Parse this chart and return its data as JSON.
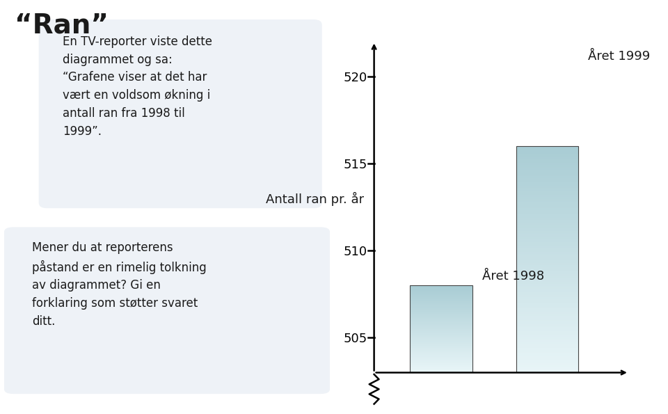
{
  "title": "“Ran”",
  "text_box1": "En TV-reporter viste dette\ndiagrammet og sa:\n“Grafene viser at det har\nvært en voldsom økning i\nantall ran fra 1998 til\n1999”.",
  "text_box2": "Mener du at reporterens\npåstand er en rimelig tolkning\nav diagrammet? Gi en\nforklaring som støtter svaret\nditt.",
  "ylabel": "Antall ran pr. år",
  "bar_label_1998": "Året 1998",
  "bar_label_1999": "Året 1999",
  "bar_value_1998": 508,
  "bar_value_1999": 516,
  "yticks": [
    505,
    510,
    515,
    520
  ],
  "ymin": 503,
  "ymax": 522,
  "bar_color_top": "#a8cdd4",
  "bar_color_bottom": "#e8f4f7",
  "background_color": "#ffffff",
  "box_bg_color": "#eef2f7",
  "text_color": "#1a1a1a",
  "font_size_title": 28,
  "font_size_text": 12,
  "font_size_tick": 13,
  "font_size_ylabel": 13,
  "font_size_bar_label": 13
}
